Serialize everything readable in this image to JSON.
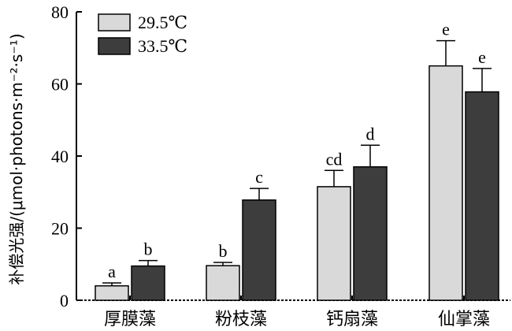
{
  "chart_data": {
    "type": "bar",
    "title": "",
    "xlabel": "",
    "ylabel": "补偿光强/(μmol·photons·m⁻²·s⁻¹)",
    "ylim": [
      0,
      80
    ],
    "yticks": [
      0,
      20,
      40,
      60,
      80
    ],
    "categories": [
      "厚膜藻",
      "粉枝藻",
      "钙扇藻",
      "仙掌藻"
    ],
    "legend_position": "top-left",
    "grid": false,
    "series": [
      {
        "name": "29.5℃",
        "color": "#d9d9d9",
        "values": [
          4,
          9.6,
          31.5,
          65
        ],
        "errors": [
          0.8,
          0.9,
          4.5,
          7
        ],
        "labels": [
          "a",
          "b",
          "cd",
          "e"
        ]
      },
      {
        "name": "33.5℃",
        "color": "#3d3d3d",
        "values": [
          9.5,
          27.8,
          37,
          57.8
        ],
        "errors": [
          1.5,
          3.2,
          6,
          6.5
        ],
        "labels": [
          "b",
          "c",
          "d",
          "e"
        ]
      }
    ]
  }
}
